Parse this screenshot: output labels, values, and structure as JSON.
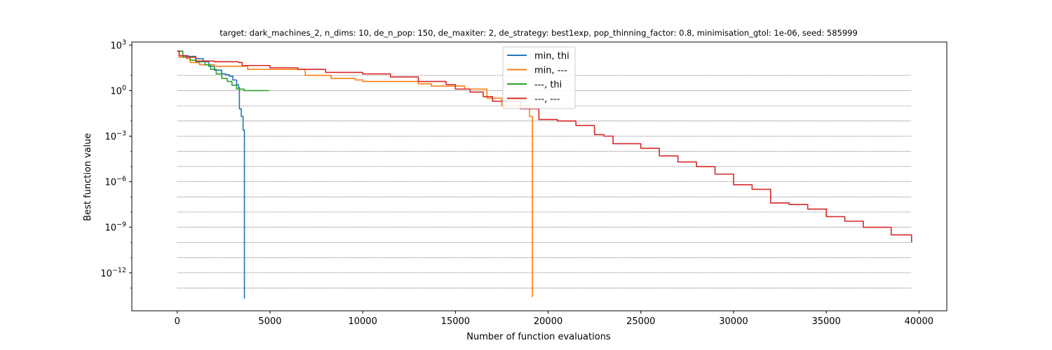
{
  "chart_data": {
    "type": "line",
    "title": "target: dark_machines_2, n_dims: 10, de_n_pop: 150, de_maxiter: 2, de_strategy: best1exp, pop_thinning_factor: 0.8, minimisation_gtol: 1e-06, seed: 585999",
    "xlabel": "Number of function evaluations",
    "ylabel": "Best function value",
    "xlim": [
      -2450,
      41500
    ],
    "ylim_log10": [
      -14.5,
      3.2
    ],
    "yscale": "log",
    "xticks": [
      0,
      5000,
      10000,
      15000,
      20000,
      25000,
      30000,
      35000,
      40000
    ],
    "xtick_labels": [
      "0",
      "5000",
      "10000",
      "15000",
      "20000",
      "25000",
      "30000",
      "35000",
      "40000"
    ],
    "yticks_log10": [
      3,
      0,
      -3,
      -6,
      -9,
      -12
    ],
    "ytick_labels": [
      {
        "base": "10",
        "exp": "3"
      },
      {
        "base": "10",
        "exp": "0"
      },
      {
        "base": "10",
        "exp": "−3"
      },
      {
        "base": "10",
        "exp": "−6"
      },
      {
        "base": "10",
        "exp": "−9"
      },
      {
        "base": "10",
        "exp": "−12"
      }
    ],
    "gridlines_log10": [
      1,
      0,
      -1,
      -2,
      -3,
      -4,
      -5,
      -6,
      -7,
      -8,
      -9,
      -10,
      -11,
      -12,
      -13
    ],
    "grid_x_range": [
      0,
      39600
    ],
    "legend_position": "top-center",
    "series": [
      {
        "name": "min, thi",
        "color": "#1f77b4",
        "points": [
          [
            0,
            2.6
          ],
          [
            300,
            2.3
          ],
          [
            600,
            2.25
          ],
          [
            1000,
            2.1
          ],
          [
            1400,
            1.9
          ],
          [
            1700,
            1.6
          ],
          [
            2000,
            1.35
          ],
          [
            2300,
            1.35
          ],
          [
            2400,
            1.1
          ],
          [
            2600,
            1.05
          ],
          [
            2800,
            0.95
          ],
          [
            3000,
            0.7
          ],
          [
            3200,
            0.4
          ],
          [
            3300,
            0.2
          ],
          [
            3350,
            -1.2
          ],
          [
            3450,
            -1.7
          ],
          [
            3550,
            -2.6
          ],
          [
            3600,
            -2.6
          ],
          [
            3620,
            -13.7
          ]
        ]
      },
      {
        "name": "min, ---",
        "color": "#ff7f0e",
        "points": [
          [
            0,
            2.6
          ],
          [
            100,
            2.2
          ],
          [
            500,
            2.1
          ],
          [
            700,
            1.85
          ],
          [
            1200,
            1.7
          ],
          [
            2000,
            1.6
          ],
          [
            3700,
            1.6
          ],
          [
            3800,
            1.4
          ],
          [
            6800,
            1.4
          ],
          [
            6900,
            1.0
          ],
          [
            8000,
            1.0
          ],
          [
            8300,
            0.8
          ],
          [
            9600,
            0.7
          ],
          [
            10000,
            0.6
          ],
          [
            13000,
            0.45
          ],
          [
            13700,
            0.3
          ],
          [
            15500,
            0.1
          ],
          [
            16500,
            0.1
          ],
          [
            16700,
            -0.5
          ],
          [
            17500,
            -1.0
          ],
          [
            19000,
            -1.7
          ],
          [
            19100,
            -1.7
          ],
          [
            19150,
            -13.6
          ]
        ]
      },
      {
        "name": "---, thi",
        "color": "#2ca02c",
        "points": [
          [
            0,
            2.6
          ],
          [
            300,
            2.2
          ],
          [
            700,
            2.0
          ],
          [
            1000,
            1.9
          ],
          [
            1500,
            1.7
          ],
          [
            1800,
            1.4
          ],
          [
            2100,
            1.1
          ],
          [
            2400,
            0.8
          ],
          [
            2700,
            0.6
          ],
          [
            2950,
            0.35
          ],
          [
            3200,
            0.1
          ],
          [
            3600,
            0.0
          ],
          [
            4950,
            0.0
          ]
        ]
      },
      {
        "name": "---, ---",
        "color": "#d62728",
        "points": [
          [
            0,
            2.6
          ],
          [
            100,
            2.3
          ],
          [
            500,
            2.2
          ],
          [
            1000,
            1.95
          ],
          [
            2000,
            1.9
          ],
          [
            3300,
            1.85
          ],
          [
            3500,
            1.65
          ],
          [
            5000,
            1.5
          ],
          [
            6500,
            1.4
          ],
          [
            8000,
            1.2
          ],
          [
            10000,
            1.1
          ],
          [
            11500,
            0.9
          ],
          [
            13000,
            0.6
          ],
          [
            14500,
            0.4
          ],
          [
            15000,
            0.1
          ],
          [
            15800,
            -0.1
          ],
          [
            16500,
            -0.4
          ],
          [
            17000,
            -0.7
          ],
          [
            18500,
            -1.2
          ],
          [
            19500,
            -1.9
          ],
          [
            20500,
            -2.0
          ],
          [
            21500,
            -2.3
          ],
          [
            22500,
            -2.9
          ],
          [
            23000,
            -3.0
          ],
          [
            23500,
            -3.5
          ],
          [
            25000,
            -3.8
          ],
          [
            26000,
            -4.3
          ],
          [
            27000,
            -4.7
          ],
          [
            28000,
            -5.0
          ],
          [
            29000,
            -5.5
          ],
          [
            30000,
            -6.2
          ],
          [
            31000,
            -6.5
          ],
          [
            32000,
            -7.4
          ],
          [
            33000,
            -7.5
          ],
          [
            34000,
            -7.8
          ],
          [
            35000,
            -8.3
          ],
          [
            36000,
            -8.6
          ],
          [
            37000,
            -9.0
          ],
          [
            38500,
            -9.5
          ],
          [
            39600,
            -10.0
          ]
        ]
      }
    ]
  }
}
